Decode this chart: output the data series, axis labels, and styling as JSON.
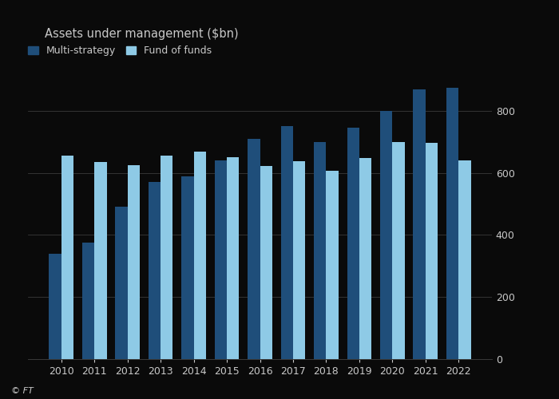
{
  "years": [
    2010,
    2011,
    2012,
    2013,
    2014,
    2015,
    2016,
    2017,
    2018,
    2019,
    2020,
    2021,
    2022
  ],
  "multi_strategy": [
    340,
    375,
    490,
    570,
    590,
    640,
    710,
    750,
    700,
    745,
    800,
    870,
    875
  ],
  "fund_of_funds": [
    655,
    635,
    625,
    655,
    668,
    650,
    622,
    638,
    608,
    648,
    700,
    698,
    640
  ],
  "multi_strategy_color": "#1f4e7a",
  "fund_of_funds_color": "#8ecae6",
  "background_color": "#0a0a0a",
  "text_color": "#c8c8c8",
  "grid_color": "#3a3a3a",
  "title": "Assets under management ($bn)",
  "legend_multi": "Multi-strategy",
  "legend_fof": "Fund of funds",
  "ylim": [
    0,
    900
  ],
  "yticks": [
    0,
    200,
    400,
    600,
    800
  ],
  "bar_width": 0.37,
  "ft_label": "© FT"
}
